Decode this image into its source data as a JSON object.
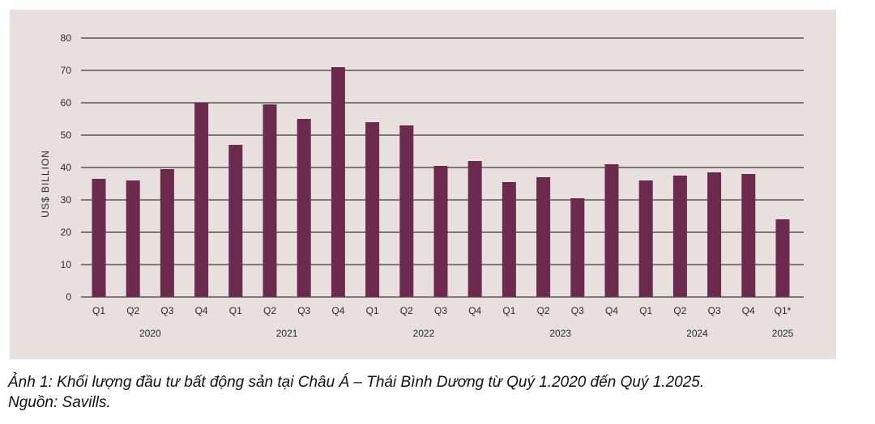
{
  "chart_data": {
    "type": "bar",
    "title": "",
    "ylabel": "US$ BILLION",
    "xlabel": "",
    "ylim": [
      0,
      80
    ],
    "yticks": [
      0,
      10,
      20,
      30,
      40,
      50,
      60,
      70,
      80
    ],
    "grid": true,
    "colors": {
      "bar": "#6b2a4e",
      "grid": "#3a3a3a",
      "background": "#e8e0dc"
    },
    "categories": [
      "Q1",
      "Q2",
      "Q3",
      "Q4",
      "Q1",
      "Q2",
      "Q3",
      "Q4",
      "Q1",
      "Q2",
      "Q3",
      "Q4",
      "Q1",
      "Q2",
      "Q3",
      "Q4",
      "Q1",
      "Q2",
      "Q3",
      "Q4",
      "Q1*"
    ],
    "years": [
      {
        "label": "2020",
        "span": 4
      },
      {
        "label": "2021",
        "span": 4
      },
      {
        "label": "2022",
        "span": 4
      },
      {
        "label": "2023",
        "span": 4
      },
      {
        "label": "2024",
        "span": 4
      },
      {
        "label": "2025",
        "span": 1
      }
    ],
    "values": [
      36.5,
      36,
      39.5,
      60,
      47,
      59.5,
      55,
      71,
      54,
      53,
      40.5,
      42,
      35.5,
      37,
      30.5,
      41,
      36,
      37.5,
      38.5,
      38,
      24
    ]
  },
  "caption": {
    "line1": "Ảnh 1: Khối lượng đầu tư bất động sản tại Châu Á – Thái Bình Dương từ Quý 1.2020 đến Quý 1.2025.",
    "line2": "Nguồn: Savills."
  }
}
